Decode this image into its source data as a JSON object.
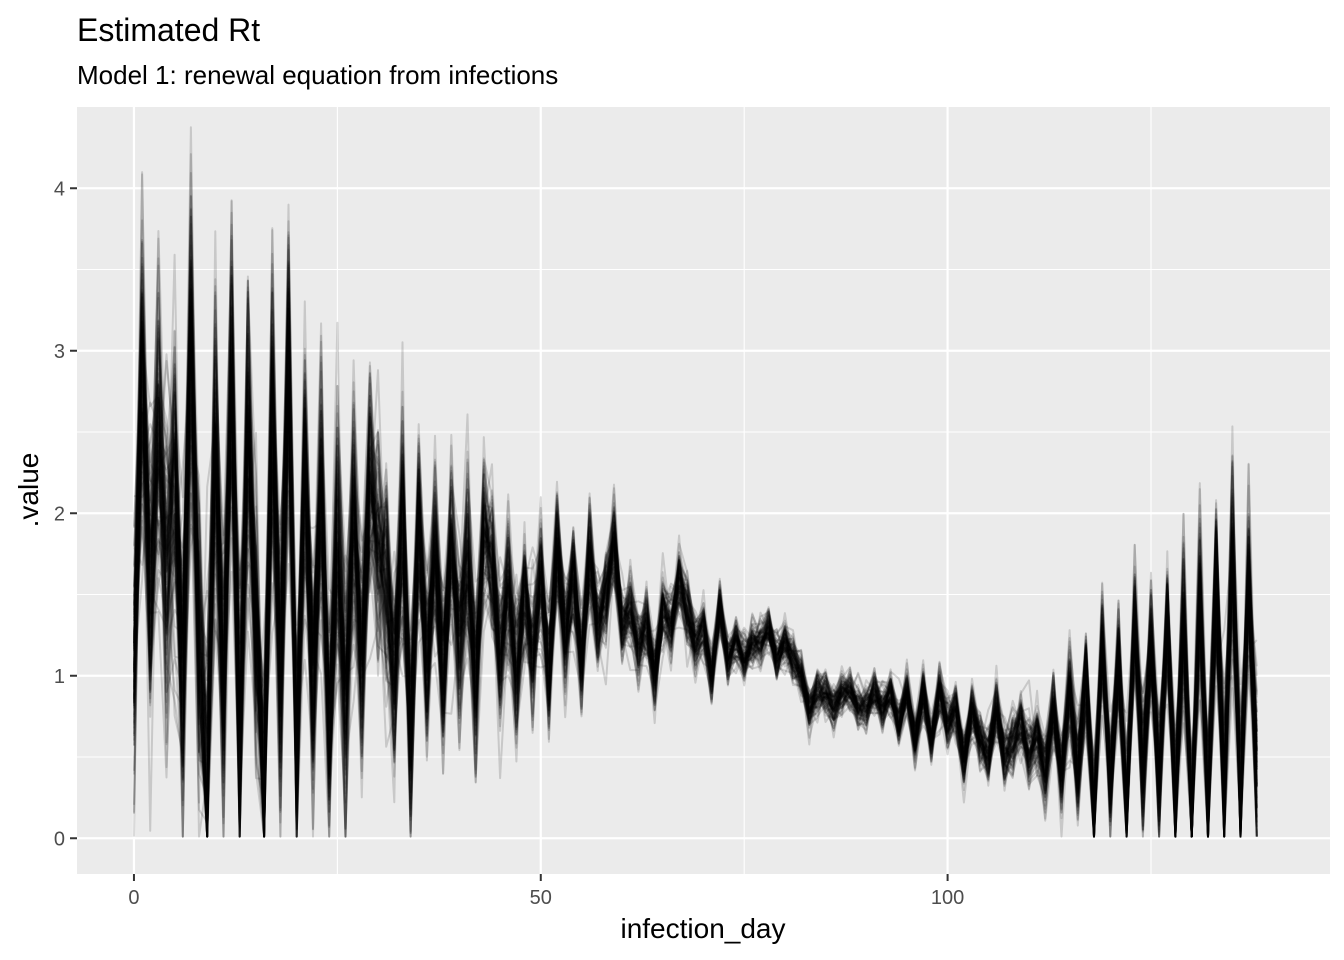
{
  "chart_data": {
    "type": "line",
    "title": "Estimated Rt",
    "subtitle": "Model 1: renewal equation from infections",
    "xlabel": "infection_day",
    "ylabel": ".value",
    "xlim": [
      -7,
      147
    ],
    "ylim": [
      -0.22,
      4.5
    ],
    "x_ticks": [
      0,
      50,
      100
    ],
    "x_minor_ticks": [
      25,
      75,
      125
    ],
    "y_ticks": [
      0,
      1,
      2,
      3,
      4
    ],
    "y_minor_ticks": [
      0.5,
      1.5,
      2.5,
      3.5
    ],
    "grid": true,
    "legend": "none",
    "line_color": "#000000",
    "line_alpha": 0.15,
    "n_draws": 100,
    "x": [
      0,
      1,
      2,
      3,
      4,
      5,
      6,
      7,
      8,
      9,
      10,
      11,
      12,
      13,
      14,
      15,
      16,
      17,
      18,
      19,
      20,
      21,
      22,
      23,
      24,
      25,
      26,
      27,
      28,
      29,
      30,
      31,
      32,
      33,
      34,
      35,
      36,
      37,
      38,
      39,
      40,
      41,
      42,
      43,
      44,
      45,
      46,
      47,
      48,
      49,
      50,
      51,
      52,
      53,
      54,
      55,
      56,
      57,
      58,
      59,
      60,
      61,
      62,
      63,
      64,
      65,
      66,
      67,
      68,
      69,
      70,
      71,
      72,
      73,
      74,
      75,
      76,
      77,
      78,
      79,
      80,
      81,
      82,
      83,
      84,
      85,
      86,
      87,
      88,
      89,
      90,
      91,
      92,
      93,
      94,
      95,
      96,
      97,
      98,
      99,
      100,
      101,
      102,
      103,
      104,
      105,
      106,
      107,
      108,
      109,
      110,
      111,
      112,
      113,
      114,
      115,
      116,
      117,
      118,
      119,
      120,
      121,
      122,
      123,
      124,
      125,
      126,
      127,
      128,
      129,
      130,
      131,
      132,
      133,
      134,
      135,
      136,
      137,
      138,
      139,
      140
    ],
    "center": [
      1.1,
      2.8,
      1.5,
      2.5,
      1.7,
      2.3,
      1.0,
      3.1,
      1.2,
      0.4,
      2.4,
      0.9,
      2.8,
      0.6,
      2.5,
      1.3,
      0.3,
      2.6,
      1.0,
      2.8,
      0.5,
      2.3,
      0.9,
      2.1,
      0.6,
      1.9,
      0.9,
      2.0,
      1.1,
      2.2,
      1.8,
      1.6,
      1.0,
      2.0,
      0.6,
      1.9,
      1.1,
      1.8,
      1.0,
      1.8,
      1.2,
      1.7,
      1.0,
      1.9,
      1.7,
      1.1,
      1.6,
      1.0,
      1.5,
      1.1,
      1.6,
      1.0,
      1.8,
      1.2,
      1.6,
      1.1,
      1.7,
      1.3,
      1.5,
      1.8,
      1.3,
      1.4,
      1.2,
      1.3,
      1.0,
      1.4,
      1.3,
      1.6,
      1.4,
      1.2,
      1.3,
      1.0,
      1.4,
      1.1,
      1.2,
      1.1,
      1.2,
      1.2,
      1.3,
      1.1,
      1.2,
      1.1,
      1.0,
      0.8,
      0.9,
      0.9,
      0.8,
      0.9,
      0.9,
      0.8,
      0.8,
      0.9,
      0.8,
      0.9,
      0.7,
      0.9,
      0.6,
      0.9,
      0.6,
      0.9,
      0.7,
      0.8,
      0.5,
      0.8,
      0.6,
      0.5,
      0.8,
      0.5,
      0.6,
      0.7,
      0.5,
      0.6,
      0.4,
      0.8,
      0.4,
      0.9,
      0.4,
      1.0,
      0.2,
      1.2,
      0.3,
      1.1,
      0.2,
      1.3,
      0.4,
      1.2,
      0.3,
      1.3,
      0.2,
      1.4,
      0.1,
      1.5,
      0.2,
      1.6,
      0.3,
      1.7,
      0.2,
      1.6,
      0.4
    ],
    "spread": [
      0.8,
      0.9,
      0.9,
      0.9,
      0.9,
      0.9,
      0.9,
      0.9,
      0.9,
      0.9,
      0.8,
      0.8,
      0.8,
      0.8,
      0.8,
      0.8,
      0.8,
      0.8,
      0.8,
      0.8,
      0.7,
      0.7,
      0.7,
      0.7,
      0.7,
      0.7,
      0.7,
      0.7,
      0.6,
      0.6,
      0.6,
      0.6,
      0.6,
      0.6,
      0.6,
      0.5,
      0.5,
      0.5,
      0.5,
      0.5,
      0.5,
      0.5,
      0.5,
      0.45,
      0.4,
      0.4,
      0.4,
      0.4,
      0.35,
      0.35,
      0.35,
      0.35,
      0.3,
      0.3,
      0.3,
      0.3,
      0.3,
      0.25,
      0.25,
      0.25,
      0.22,
      0.2,
      0.2,
      0.18,
      0.18,
      0.18,
      0.2,
      0.2,
      0.18,
      0.16,
      0.15,
      0.15,
      0.14,
      0.14,
      0.14,
      0.13,
      0.13,
      0.12,
      0.12,
      0.12,
      0.12,
      0.12,
      0.12,
      0.12,
      0.12,
      0.12,
      0.12,
      0.12,
      0.12,
      0.12,
      0.12,
      0.12,
      0.12,
      0.12,
      0.12,
      0.13,
      0.13,
      0.13,
      0.13,
      0.14,
      0.14,
      0.14,
      0.15,
      0.15,
      0.15,
      0.16,
      0.16,
      0.17,
      0.18,
      0.18,
      0.2,
      0.2,
      0.22,
      0.22,
      0.25,
      0.25,
      0.28,
      0.28,
      0.3,
      0.3,
      0.32,
      0.32,
      0.35,
      0.35,
      0.38,
      0.38,
      0.4,
      0.4,
      0.42,
      0.42,
      0.45,
      0.45,
      0.5,
      0.5,
      0.5,
      0.5,
      0.5,
      0.5,
      0.5,
      0.5,
      0.5
    ]
  }
}
